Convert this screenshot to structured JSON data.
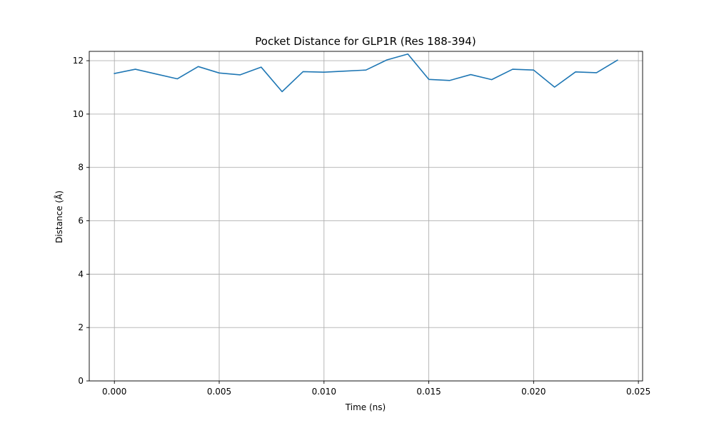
{
  "chart_data": {
    "type": "line",
    "title": "Pocket Distance for GLP1R (Res 188-394)",
    "xlabel": "Time (ns)",
    "ylabel": "Distance (Å)",
    "xlim": [
      -0.0012,
      0.0252
    ],
    "ylim": [
      0,
      12.35
    ],
    "xticks": [
      0.0,
      0.005,
      0.01,
      0.015,
      0.02,
      0.025
    ],
    "xtick_labels": [
      "0.000",
      "0.005",
      "0.010",
      "0.015",
      "0.020",
      "0.025"
    ],
    "yticks": [
      0,
      2,
      4,
      6,
      8,
      10,
      12
    ],
    "ytick_labels": [
      "0",
      "2",
      "4",
      "6",
      "8",
      "10",
      "12"
    ],
    "grid": true,
    "series": [
      {
        "color": "#1f77b4",
        "x": [
          0.0,
          0.001,
          0.002,
          0.003,
          0.004,
          0.005,
          0.006,
          0.007,
          0.008,
          0.009,
          0.01,
          0.011,
          0.012,
          0.013,
          0.014,
          0.015,
          0.016,
          0.017,
          0.018,
          0.019,
          0.02,
          0.021,
          0.022,
          0.023,
          0.024
        ],
        "y": [
          11.52,
          11.68,
          11.5,
          11.32,
          11.78,
          11.54,
          11.47,
          11.76,
          10.84,
          11.59,
          11.57,
          11.61,
          11.65,
          12.03,
          12.25,
          11.3,
          11.26,
          11.48,
          11.29,
          11.68,
          11.65,
          11.01,
          11.58,
          11.55,
          12.02
        ]
      }
    ]
  }
}
